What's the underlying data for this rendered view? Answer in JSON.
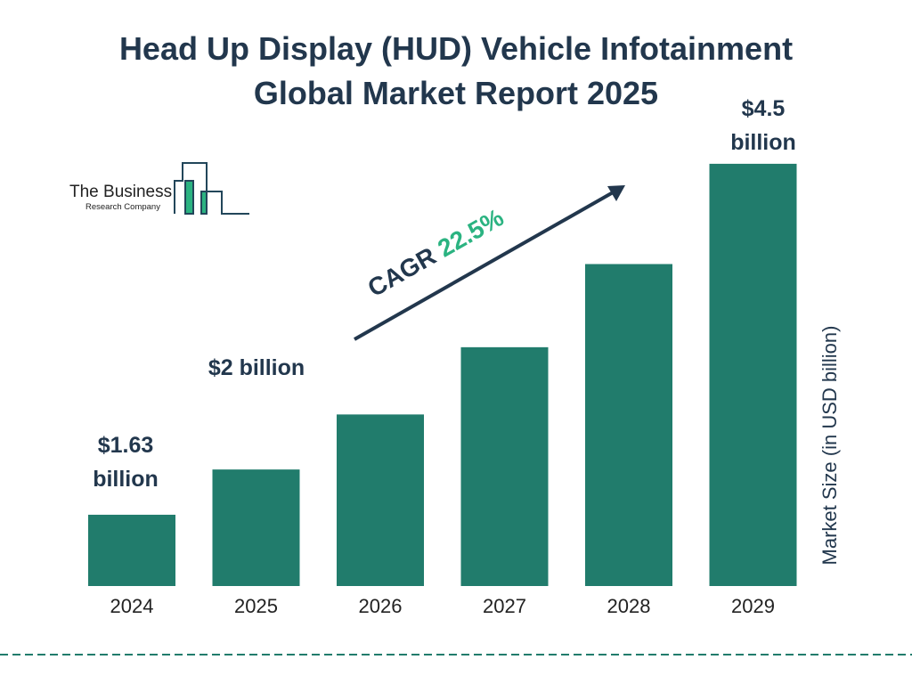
{
  "title_line1": "Head Up Display (HUD) Vehicle Infotainment",
  "title_line2": "Global Market Report 2025",
  "logo": {
    "line1": "The Business",
    "line2": "Research Company"
  },
  "cagr": {
    "label": "CAGR",
    "value": "22.5%"
  },
  "colors": {
    "bar": "#217c6c",
    "text": "#22374d",
    "accent": "#2bb381"
  },
  "chart_data": {
    "type": "bar",
    "categories": [
      "2024",
      "2025",
      "2026",
      "2027",
      "2028",
      "2029"
    ],
    "values": [
      1.63,
      2.0,
      2.45,
      3.0,
      3.68,
      4.5
    ],
    "data_labels": [
      "$1.63 billion",
      "$2 billion",
      "",
      "",
      "",
      "$4.5 billion"
    ],
    "ylabel": "Market Size (in USD billion)",
    "grid": false
  }
}
